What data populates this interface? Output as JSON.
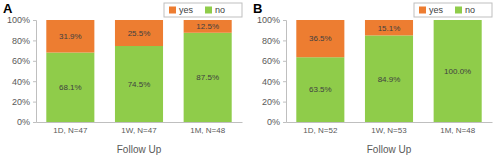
{
  "chart_data": [
    {
      "type": "bar",
      "title": "A",
      "xlabel": "Follow Up",
      "categories": [
        "1D, N=47",
        "1W, N=47",
        "1M, N=48"
      ],
      "series": [
        {
          "name": "yes",
          "color": "#ed7d31",
          "values": [
            31.9,
            25.5,
            12.5
          ],
          "value_labels": [
            "31.9%",
            "25.5%",
            "12.5%"
          ]
        },
        {
          "name": "no",
          "color": "#8fcc4a",
          "values": [
            68.1,
            74.5,
            87.5
          ],
          "value_labels": [
            "68.1%",
            "74.5%",
            "87.5%"
          ]
        }
      ],
      "ylim": [
        0,
        100
      ],
      "yticks": [
        {
          "value": 0,
          "label": "0%"
        },
        {
          "value": 20,
          "label": "20%"
        },
        {
          "value": 40,
          "label": "40%"
        },
        {
          "value": 60,
          "label": "60%"
        },
        {
          "value": 80,
          "label": "80%"
        },
        {
          "value": 100,
          "label": "100%"
        }
      ],
      "stacked": true,
      "data_labels": true,
      "legend": "upper right",
      "grid": false
    },
    {
      "type": "bar",
      "title": "B",
      "xlabel": "Follow Up",
      "categories": [
        "1D, N=52",
        "1W, N=53",
        "1M, N=48"
      ],
      "series": [
        {
          "name": "yes",
          "color": "#ed7d31",
          "values": [
            36.5,
            15.1,
            0
          ],
          "value_labels": [
            "36.5%",
            "15.1%",
            null
          ]
        },
        {
          "name": "no",
          "color": "#8fcc4a",
          "values": [
            63.5,
            84.9,
            100.0
          ],
          "value_labels": [
            "63.5%",
            "84.9%",
            "100.0%"
          ]
        }
      ],
      "ylim": [
        0,
        100
      ],
      "yticks": [
        {
          "value": 0,
          "label": "0%"
        },
        {
          "value": 20,
          "label": "20%"
        },
        {
          "value": 40,
          "label": "40%"
        },
        {
          "value": 60,
          "label": "60%"
        },
        {
          "value": 80,
          "label": "80%"
        },
        {
          "value": 100,
          "label": "100%"
        }
      ],
      "stacked": true,
      "data_labels": true,
      "legend": "upper right",
      "grid": false
    }
  ]
}
